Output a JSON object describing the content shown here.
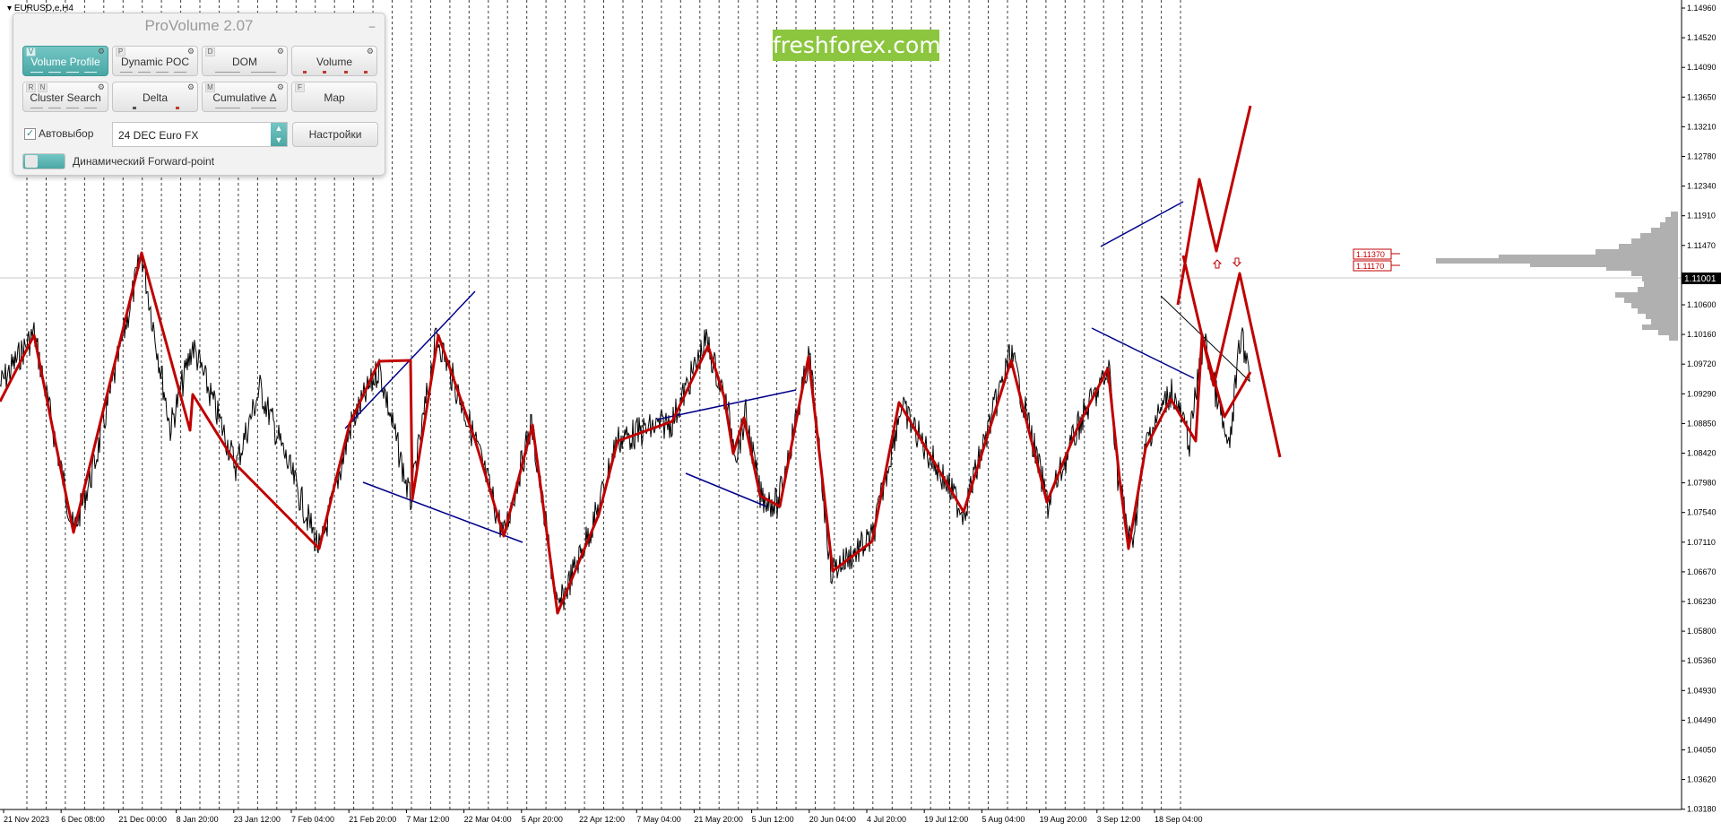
{
  "chart": {
    "symbol_title": "EURUSD,e,H4",
    "watermark": "freshforex.com",
    "current_price_label": "1.11001",
    "level_labels": [
      "1.11370",
      "1.11170"
    ],
    "price_ticks": [
      "1.14960",
      "1.14520",
      "1.14090",
      "1.13650",
      "1.13210",
      "1.12780",
      "1.12340",
      "1.11910",
      "1.11470",
      "1.11001",
      "1.10600",
      "1.10160",
      "1.09720",
      "1.09290",
      "1.08850",
      "1.08420",
      "1.07980",
      "1.07540",
      "1.07110",
      "1.06670",
      "1.06230",
      "1.05800",
      "1.05360",
      "1.04930",
      "1.04490",
      "1.04050",
      "1.03620",
      "1.03180"
    ],
    "time_ticks": [
      "21 Nov 2023",
      "6 Dec 08:00",
      "21 Dec 00:00",
      "8 Jan 20:00",
      "23 Jan 12:00",
      "7 Feb 04:00",
      "21 Feb 20:00",
      "7 Mar 12:00",
      "22 Mar 04:00",
      "5 Apr 20:00",
      "22 Apr 12:00",
      "7 May 04:00",
      "21 May 20:00",
      "5 Jun 12:00",
      "20 Jun 04:00",
      "4 Jul 20:00",
      "19 Jul 12:00",
      "5 Aug 04:00",
      "19 Aug 20:00",
      "3 Sep 12:00",
      "18 Sep 04:00"
    ]
  },
  "colors": {
    "price_line": "#000000",
    "zigzag": "#c00000",
    "trendline": "#00008b",
    "volume_profile": "#b0b0b0",
    "grid": "#000000",
    "watermark_bg": "#8cc63f"
  },
  "provolume": {
    "title": "ProVolume 2.07",
    "buttons": [
      {
        "label": "Volume Profile",
        "hotkey": "V",
        "active": true
      },
      {
        "label": "Dynamic POC",
        "hotkey": "P",
        "active": false
      },
      {
        "label": "DOM",
        "hotkey": "D",
        "active": false
      },
      {
        "label": "Volume",
        "hotkey": "",
        "active": false
      },
      {
        "label": "Cluster Search",
        "hotkey": "R",
        "hotkey2": "N",
        "active": false
      },
      {
        "label": "Delta",
        "hotkey": "",
        "active": false
      },
      {
        "label": "Cumulative Δ",
        "hotkey": "M",
        "active": false
      },
      {
        "label": "Map",
        "hotkey": "F",
        "active": false
      }
    ],
    "autoselect_label": "Автовыбор",
    "autoselect_checked": true,
    "instrument": "24 DEC Euro FX",
    "settings_label": "Настройки",
    "forward_point_label": "Динамический Forward-point"
  }
}
